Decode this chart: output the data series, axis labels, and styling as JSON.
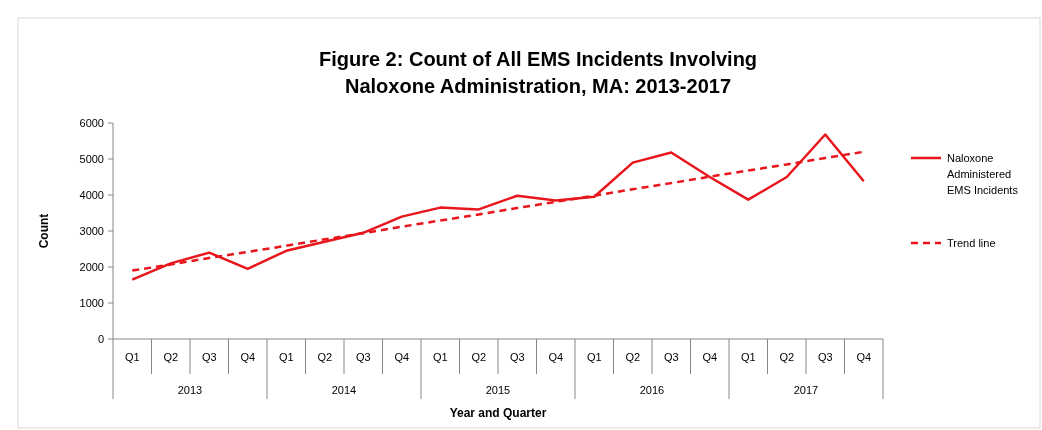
{
  "chart_data": {
    "type": "line",
    "title": "Figure 2: Count of All EMS Incidents Involving Naloxone Administration, MA: 2013-2017",
    "xlabel": "Year and Quarter",
    "ylabel": "Count",
    "categories": [
      "Q1",
      "Q2",
      "Q3",
      "Q4",
      "Q1",
      "Q2",
      "Q3",
      "Q4",
      "Q1",
      "Q2",
      "Q3",
      "Q4",
      "Q1",
      "Q2",
      "Q3",
      "Q4",
      "Q1",
      "Q2",
      "Q3",
      "Q4"
    ],
    "annotations": [
      "2013",
      "2014",
      "2015",
      "2016",
      "2017"
    ],
    "series": [
      {
        "name": "Naloxone Administered EMS Incidents",
        "color": "#e8161c",
        "line_style": "solid",
        "values": [
          1650,
          2100,
          2400,
          1950,
          2450,
          2700,
          2950,
          3400,
          3650,
          3600,
          3980,
          3850,
          3950,
          4900,
          5180,
          4500,
          3870,
          4500,
          5680,
          4380
        ]
      },
      {
        "name": "Trend line",
        "color": "#e8161c",
        "line_style": "dashed",
        "values": [
          1900,
          2070,
          2250,
          2420,
          2590,
          2770,
          2940,
          3120,
          3290,
          3460,
          3640,
          3810,
          3980,
          4160,
          4330,
          4510,
          4680,
          4850,
          5030,
          5200
        ]
      }
    ],
    "ylim": [
      0,
      6000
    ],
    "yticks": [
      0,
      1000,
      2000,
      3000,
      4000,
      5000,
      6000
    ],
    "grid": false,
    "legend": "right",
    "marker": "none"
  }
}
